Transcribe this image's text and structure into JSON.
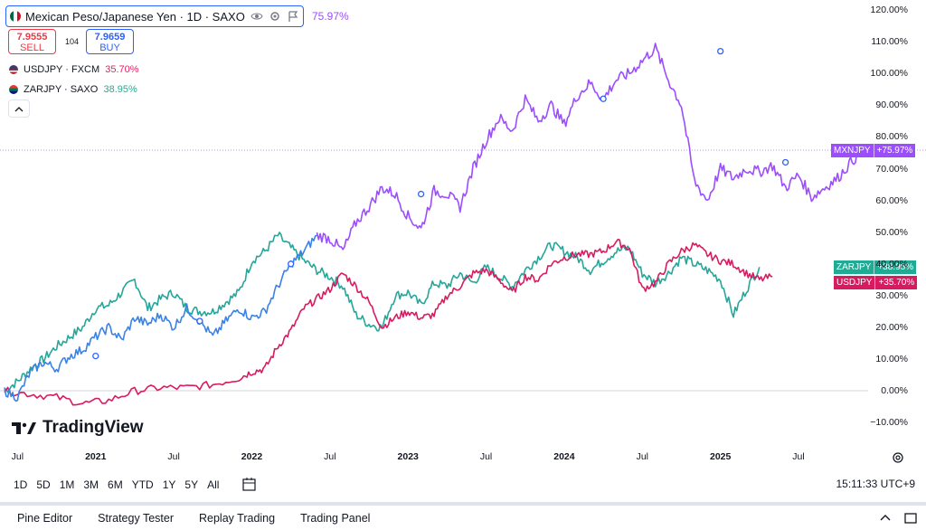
{
  "header": {
    "symbol_title": "Mexican Peso/Japanese Yen · 1D · SAXO",
    "change_pct": "75.97%",
    "sell_price": "7.9555",
    "sell_label": "SELL",
    "spread": "104",
    "buy_price": "7.9659",
    "buy_label": "BUY",
    "icons": [
      "mexico-flag-icon",
      "eye-icon",
      "settings-icon",
      "flag-icon"
    ]
  },
  "legend": [
    {
      "label": "USDJPY · FXCM",
      "value": "35.70%",
      "color": "#e91e63",
      "icon": "us-flag-icon"
    },
    {
      "label": "ZARJPY · SAXO",
      "value": "38.95%",
      "color": "#22ab94",
      "icon": "za-flag-icon"
    }
  ],
  "logo": {
    "text": "TradingView"
  },
  "colors": {
    "mxnjpy": "#9c4dff",
    "usdjpy": "#d81b60",
    "zarjpy": "#26a69a",
    "mxnjpy_early": "#3b82e6"
  },
  "badges": {
    "mxnjpy": {
      "name": "MXNJPY",
      "value": "+75.97%"
    },
    "zarjpy": {
      "name": "ZARJPY",
      "value": "+38.95%"
    },
    "usdjpy": {
      "name": "USDJPY",
      "value": "+35.70%"
    }
  },
  "y_axis": [
    "120.00%",
    "110.00%",
    "100.00%",
    "90.00%",
    "80.00%",
    "70.00%",
    "60.00%",
    "50.00%",
    "40.00%",
    "30.00%",
    "20.00%",
    "10.00%",
    "0.00%",
    "−10.00%"
  ],
  "x_axis": [
    {
      "label": "Jul",
      "year": false
    },
    {
      "label": "2021",
      "year": true
    },
    {
      "label": "Jul",
      "year": false
    },
    {
      "label": "2022",
      "year": true
    },
    {
      "label": "Jul",
      "year": false
    },
    {
      "label": "2023",
      "year": true
    },
    {
      "label": "Jul",
      "year": false
    },
    {
      "label": "2024",
      "year": true
    },
    {
      "label": "Jul",
      "year": false
    },
    {
      "label": "2025",
      "year": true
    },
    {
      "label": "Jul",
      "year": false
    }
  ],
  "ranges": [
    "1D",
    "5D",
    "1M",
    "3M",
    "6M",
    "YTD",
    "1Y",
    "5Y",
    "All"
  ],
  "time_readout": "15:11:33 UTC+9",
  "tabs": [
    "Pine Editor",
    "Strategy Tester",
    "Replay Trading",
    "Trading Panel"
  ],
  "chart_data": {
    "type": "line",
    "x_unit": "months since Jul 2020 start",
    "ylim": [
      -12,
      122
    ],
    "series": [
      {
        "name": "MXNJPY",
        "color": "#9c4dff",
        "points": [
          [
            0,
            0
          ],
          [
            1,
            -2
          ],
          [
            2,
            6
          ],
          [
            3,
            9
          ],
          [
            4,
            7
          ],
          [
            5,
            11
          ],
          [
            6,
            13
          ],
          [
            7,
            17
          ],
          [
            8,
            20
          ],
          [
            9,
            16
          ],
          [
            10,
            23
          ],
          [
            11,
            21
          ],
          [
            12,
            24
          ],
          [
            13,
            20
          ],
          [
            14,
            26
          ],
          [
            15,
            22
          ],
          [
            16,
            17
          ],
          [
            17,
            22
          ],
          [
            18,
            26
          ],
          [
            19,
            23
          ],
          [
            20,
            25
          ],
          [
            21,
            33
          ],
          [
            22,
            40
          ],
          [
            23,
            44
          ],
          [
            24,
            49
          ],
          [
            25,
            48
          ],
          [
            26,
            44
          ],
          [
            27,
            53
          ],
          [
            28,
            58
          ],
          [
            29,
            64
          ],
          [
            30,
            62
          ],
          [
            31,
            55
          ],
          [
            32,
            51
          ],
          [
            33,
            63
          ],
          [
            34,
            62
          ],
          [
            35,
            58
          ],
          [
            36,
            70
          ],
          [
            37,
            79
          ],
          [
            38,
            86
          ],
          [
            39,
            82
          ],
          [
            40,
            92
          ],
          [
            41,
            85
          ],
          [
            42,
            90
          ],
          [
            43,
            84
          ],
          [
            44,
            93
          ],
          [
            45,
            97
          ],
          [
            46,
            92
          ],
          [
            47,
            98
          ],
          [
            48,
            100
          ],
          [
            49,
            104
          ],
          [
            50,
            108
          ],
          [
            51,
            98
          ],
          [
            52,
            90
          ],
          [
            53,
            66
          ],
          [
            54,
            60
          ],
          [
            55,
            70
          ],
          [
            56,
            67
          ],
          [
            57,
            70
          ],
          [
            58,
            69
          ],
          [
            59,
            71
          ],
          [
            60,
            64
          ],
          [
            61,
            68
          ],
          [
            62,
            61
          ],
          [
            63,
            64
          ],
          [
            64,
            67
          ],
          [
            65,
            72
          ],
          [
            66,
            76
          ]
        ]
      },
      {
        "name": "USDJPY",
        "color": "#d81b60",
        "points": [
          [
            0,
            0
          ],
          [
            2,
            -1
          ],
          [
            4,
            -2
          ],
          [
            6,
            -4
          ],
          [
            8,
            -3
          ],
          [
            10,
            0
          ],
          [
            12,
            1
          ],
          [
            14,
            1
          ],
          [
            16,
            2
          ],
          [
            18,
            4
          ],
          [
            19,
            6
          ],
          [
            20,
            7
          ],
          [
            21,
            14
          ],
          [
            22,
            19
          ],
          [
            23,
            26
          ],
          [
            24,
            29
          ],
          [
            25,
            32
          ],
          [
            26,
            37
          ],
          [
            27,
            33
          ],
          [
            28,
            28
          ],
          [
            29,
            20
          ],
          [
            30,
            23
          ],
          [
            31,
            25
          ],
          [
            32,
            23
          ],
          [
            33,
            24
          ],
          [
            34,
            30
          ],
          [
            35,
            33
          ],
          [
            36,
            37
          ],
          [
            37,
            38
          ],
          [
            38,
            35
          ],
          [
            39,
            31
          ],
          [
            40,
            36
          ],
          [
            41,
            35
          ],
          [
            42,
            40
          ],
          [
            43,
            42
          ],
          [
            44,
            43
          ],
          [
            45,
            43
          ],
          [
            46,
            44
          ],
          [
            47,
            47
          ],
          [
            48,
            45
          ],
          [
            49,
            32
          ],
          [
            50,
            34
          ],
          [
            51,
            40
          ],
          [
            52,
            44
          ],
          [
            53,
            46
          ],
          [
            54,
            43
          ],
          [
            55,
            41
          ],
          [
            56,
            40
          ],
          [
            57,
            37
          ],
          [
            58,
            35
          ],
          [
            59,
            36
          ]
        ]
      },
      {
        "name": "ZARJPY",
        "color": "#26a69a",
        "points": [
          [
            0,
            0
          ],
          [
            1,
            3
          ],
          [
            2,
            7
          ],
          [
            3,
            10
          ],
          [
            4,
            14
          ],
          [
            5,
            17
          ],
          [
            6,
            20
          ],
          [
            7,
            26
          ],
          [
            8,
            27
          ],
          [
            9,
            31
          ],
          [
            10,
            35
          ],
          [
            11,
            26
          ],
          [
            12,
            29
          ],
          [
            13,
            31
          ],
          [
            14,
            26
          ],
          [
            15,
            25
          ],
          [
            16,
            25
          ],
          [
            17,
            28
          ],
          [
            18,
            31
          ],
          [
            19,
            41
          ],
          [
            20,
            44
          ],
          [
            21,
            49
          ],
          [
            22,
            45
          ],
          [
            23,
            41
          ],
          [
            24,
            38
          ],
          [
            25,
            36
          ],
          [
            26,
            33
          ],
          [
            27,
            24
          ],
          [
            28,
            21
          ],
          [
            29,
            20
          ],
          [
            30,
            30
          ],
          [
            31,
            31
          ],
          [
            32,
            27
          ],
          [
            33,
            34
          ],
          [
            34,
            33
          ],
          [
            35,
            37
          ],
          [
            36,
            34
          ],
          [
            37,
            39
          ],
          [
            38,
            36
          ],
          [
            39,
            33
          ],
          [
            40,
            38
          ],
          [
            41,
            42
          ],
          [
            42,
            46
          ],
          [
            43,
            44
          ],
          [
            44,
            42
          ],
          [
            45,
            38
          ],
          [
            46,
            41
          ],
          [
            47,
            44
          ],
          [
            48,
            45
          ],
          [
            49,
            37
          ],
          [
            50,
            34
          ],
          [
            51,
            37
          ],
          [
            52,
            42
          ],
          [
            53,
            40
          ],
          [
            54,
            38
          ],
          [
            55,
            35
          ],
          [
            56,
            24
          ],
          [
            57,
            32
          ],
          [
            58,
            39
          ]
        ]
      }
    ]
  }
}
